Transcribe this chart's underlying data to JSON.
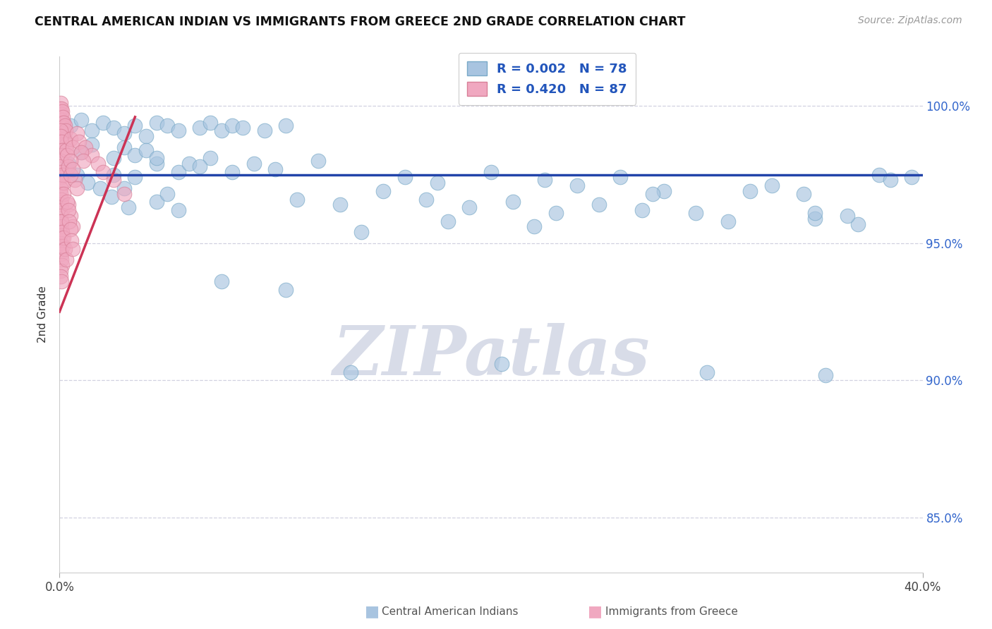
{
  "title": "CENTRAL AMERICAN INDIAN VS IMMIGRANTS FROM GREECE 2ND GRADE CORRELATION CHART",
  "source": "Source: ZipAtlas.com",
  "ylabel": "2nd Grade",
  "xlim": [
    0.0,
    40.0
  ],
  "ylim": [
    83.0,
    101.8
  ],
  "yticks": [
    85.0,
    90.0,
    95.0,
    100.0
  ],
  "blue_color": "#a8c4e0",
  "blue_edge_color": "#7aaac8",
  "pink_color": "#f0a8c0",
  "pink_edge_color": "#d88098",
  "blue_line_color": "#2244aa",
  "pink_line_color": "#cc3355",
  "grid_color": "#ccccdd",
  "watermark_color": "#d8dce8",
  "blue_line_y": 97.5,
  "pink_line_x0": 0.0,
  "pink_line_x1": 3.5,
  "pink_line_y0": 92.5,
  "pink_line_y1": 99.6,
  "blue_scatter": [
    [
      0.5,
      99.3
    ],
    [
      1.0,
      99.5
    ],
    [
      1.5,
      99.1
    ],
    [
      2.0,
      99.4
    ],
    [
      2.5,
      99.2
    ],
    [
      3.0,
      99.0
    ],
    [
      3.5,
      99.3
    ],
    [
      4.0,
      98.9
    ],
    [
      4.5,
      99.4
    ],
    [
      5.0,
      99.3
    ],
    [
      5.5,
      99.1
    ],
    [
      6.5,
      99.2
    ],
    [
      7.0,
      99.4
    ],
    [
      7.5,
      99.1
    ],
    [
      8.0,
      99.3
    ],
    [
      8.5,
      99.2
    ],
    [
      9.5,
      99.1
    ],
    [
      10.5,
      99.3
    ],
    [
      1.0,
      98.3
    ],
    [
      1.5,
      98.6
    ],
    [
      2.5,
      98.1
    ],
    [
      3.0,
      98.5
    ],
    [
      3.5,
      98.2
    ],
    [
      4.5,
      97.9
    ],
    [
      0.4,
      97.9
    ],
    [
      0.8,
      97.5
    ],
    [
      1.3,
      97.2
    ],
    [
      1.9,
      97.0
    ],
    [
      2.4,
      96.7
    ],
    [
      3.0,
      97.0
    ],
    [
      3.5,
      97.4
    ],
    [
      4.0,
      98.4
    ],
    [
      4.5,
      98.1
    ],
    [
      5.5,
      97.6
    ],
    [
      6.0,
      97.9
    ],
    [
      7.0,
      98.1
    ],
    [
      8.0,
      97.6
    ],
    [
      12.0,
      98.0
    ],
    [
      16.0,
      97.4
    ],
    [
      20.0,
      97.6
    ],
    [
      24.0,
      97.1
    ],
    [
      26.0,
      97.4
    ],
    [
      28.0,
      96.9
    ],
    [
      11.0,
      96.6
    ],
    [
      13.0,
      96.4
    ],
    [
      15.0,
      96.9
    ],
    [
      17.0,
      96.6
    ],
    [
      19.0,
      96.3
    ],
    [
      21.0,
      96.5
    ],
    [
      23.0,
      96.1
    ],
    [
      25.0,
      96.4
    ],
    [
      27.0,
      96.2
    ],
    [
      14.0,
      95.4
    ],
    [
      18.0,
      95.8
    ],
    [
      22.0,
      95.6
    ],
    [
      31.0,
      95.8
    ],
    [
      35.0,
      95.9
    ],
    [
      37.0,
      95.7
    ],
    [
      7.5,
      93.6
    ],
    [
      10.5,
      93.3
    ],
    [
      13.5,
      90.3
    ],
    [
      20.5,
      90.6
    ],
    [
      35.5,
      90.2
    ],
    [
      30.0,
      90.3
    ],
    [
      35.0,
      96.1
    ],
    [
      38.0,
      97.5
    ],
    [
      32.0,
      96.9
    ],
    [
      34.5,
      96.8
    ],
    [
      27.5,
      96.8
    ],
    [
      29.5,
      96.1
    ],
    [
      9.0,
      97.9
    ],
    [
      10.0,
      97.7
    ],
    [
      36.5,
      96.0
    ],
    [
      38.5,
      97.3
    ],
    [
      17.5,
      97.2
    ],
    [
      22.5,
      97.3
    ],
    [
      2.5,
      97.5
    ],
    [
      3.2,
      96.3
    ],
    [
      5.5,
      96.2
    ],
    [
      6.5,
      97.8
    ],
    [
      4.5,
      96.5
    ],
    [
      5.0,
      96.8
    ],
    [
      33.0,
      97.1
    ],
    [
      39.5,
      97.4
    ]
  ],
  "pink_scatter": [
    [
      0.03,
      99.9
    ],
    [
      0.05,
      100.1
    ],
    [
      0.07,
      99.7
    ],
    [
      0.08,
      99.9
    ],
    [
      0.1,
      99.5
    ],
    [
      0.12,
      99.8
    ],
    [
      0.14,
      99.4
    ],
    [
      0.16,
      99.6
    ],
    [
      0.18,
      99.2
    ],
    [
      0.2,
      99.4
    ],
    [
      0.22,
      99.0
    ],
    [
      0.24,
      99.3
    ],
    [
      0.26,
      98.8
    ],
    [
      0.28,
      99.1
    ],
    [
      0.3,
      98.6
    ],
    [
      0.04,
      99.1
    ],
    [
      0.06,
      98.9
    ],
    [
      0.09,
      98.7
    ],
    [
      0.11,
      98.4
    ],
    [
      0.13,
      98.2
    ],
    [
      0.04,
      98.0
    ],
    [
      0.06,
      97.8
    ],
    [
      0.08,
      97.6
    ],
    [
      0.1,
      97.4
    ],
    [
      0.12,
      97.2
    ],
    [
      0.04,
      97.0
    ],
    [
      0.06,
      96.8
    ],
    [
      0.08,
      96.6
    ],
    [
      0.1,
      96.4
    ],
    [
      0.12,
      96.2
    ],
    [
      0.04,
      96.0
    ],
    [
      0.06,
      95.8
    ],
    [
      0.08,
      95.6
    ],
    [
      0.1,
      95.4
    ],
    [
      0.12,
      95.2
    ],
    [
      0.04,
      95.0
    ],
    [
      0.06,
      94.8
    ],
    [
      0.08,
      94.6
    ],
    [
      0.1,
      94.4
    ],
    [
      0.12,
      94.2
    ],
    [
      0.04,
      94.0
    ],
    [
      0.06,
      93.8
    ],
    [
      0.08,
      93.6
    ],
    [
      0.3,
      98.4
    ],
    [
      0.35,
      98.2
    ],
    [
      0.5,
      98.8
    ],
    [
      0.6,
      98.5
    ],
    [
      0.8,
      99.0
    ],
    [
      0.9,
      98.7
    ],
    [
      1.2,
      98.5
    ],
    [
      1.5,
      98.2
    ],
    [
      1.8,
      97.9
    ],
    [
      2.0,
      97.6
    ],
    [
      2.5,
      97.3
    ],
    [
      3.0,
      96.8
    ],
    [
      0.15,
      97.5
    ],
    [
      0.18,
      97.2
    ],
    [
      0.2,
      96.8
    ],
    [
      0.4,
      96.4
    ],
    [
      0.5,
      96.0
    ],
    [
      0.6,
      95.6
    ],
    [
      0.1,
      95.8
    ],
    [
      0.12,
      95.4
    ],
    [
      0.15,
      94.9
    ],
    [
      0.2,
      95.2
    ],
    [
      0.25,
      94.8
    ],
    [
      0.3,
      94.4
    ],
    [
      0.35,
      96.5
    ],
    [
      0.4,
      96.2
    ],
    [
      0.45,
      95.8
    ],
    [
      0.5,
      95.5
    ],
    [
      0.55,
      95.1
    ],
    [
      0.6,
      94.8
    ],
    [
      0.7,
      97.3
    ],
    [
      0.8,
      97.0
    ],
    [
      0.4,
      97.8
    ],
    [
      0.5,
      97.5
    ],
    [
      1.0,
      98.3
    ],
    [
      1.1,
      98.0
    ],
    [
      0.5,
      98.0
    ],
    [
      0.6,
      97.7
    ]
  ]
}
